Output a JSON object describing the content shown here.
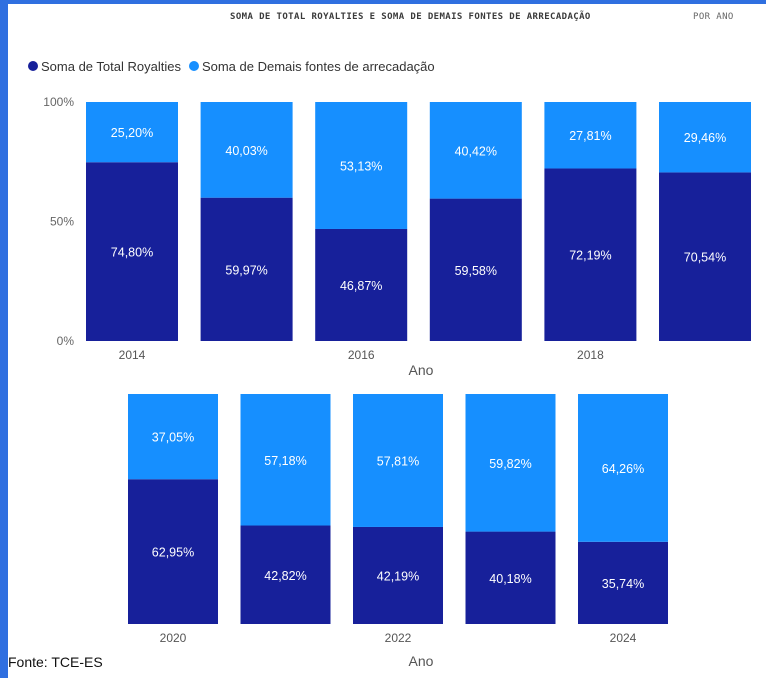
{
  "title": {
    "main": "SOMA DE TOTAL ROYALTIES E SOMA DE DEMAIS FONTES DE ARRECADAÇÃO",
    "sub": "POR ANO"
  },
  "colors": {
    "total_royalties": "#17209a",
    "demais_fontes": "#168fff",
    "background": "#2f6fe0"
  },
  "source": "Fonte: TCE-ES",
  "chart_data": [
    {
      "type": "bar",
      "stacked": "100%",
      "legend_position": "top-left",
      "series": [
        {
          "name": "Soma de  Total Royalties",
          "values": [
            74.8,
            59.97,
            46.87,
            59.58,
            72.19,
            70.54
          ]
        },
        {
          "name": "Soma de  Demais fontes de arrecadação",
          "values": [
            25.2,
            40.03,
            53.13,
            40.42,
            27.81,
            29.46
          ]
        }
      ],
      "bottom_labels": [
        "74,80%",
        "59,97%",
        "46,87%",
        "59,58%",
        "72,19%",
        "70,54%"
      ],
      "top_labels": [
        "25,20%",
        "40,03%",
        "53,13%",
        "40,42%",
        "27,81%",
        "29,46%"
      ],
      "y_ticks": [
        "100%",
        "50%",
        "0%"
      ],
      "x_ticks": [
        "2014",
        "",
        "2016",
        "",
        "2018",
        ""
      ],
      "xlabel": "Ano",
      "ylim": [
        0,
        100
      ]
    },
    {
      "type": "bar",
      "stacked": "100%",
      "series": [
        {
          "name": "Soma de  Total Royalties",
          "values": [
            62.95,
            42.82,
            42.19,
            40.18,
            35.74
          ]
        },
        {
          "name": "Soma de  Demais fontes de arrecadação",
          "values": [
            37.05,
            57.18,
            57.81,
            59.82,
            64.26
          ]
        }
      ],
      "bottom_labels": [
        "62,95%",
        "42,82%",
        "42,19%",
        "40,18%",
        "35,74%"
      ],
      "top_labels": [
        "37,05%",
        "57,18%",
        "57,81%",
        "59,82%",
        "64,26%"
      ],
      "x_ticks": [
        "2020",
        "",
        "2022",
        "",
        "2024"
      ],
      "xlabel": "Ano",
      "ylim": [
        0,
        100
      ]
    }
  ]
}
